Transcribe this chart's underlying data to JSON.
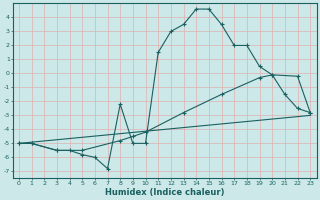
{
  "xlabel": "Humidex (Indice chaleur)",
  "bg_color": "#cce8e8",
  "grid_color": "#ddb0b0",
  "line_color": "#1a6060",
  "xlim": [
    -0.5,
    23.5
  ],
  "ylim": [
    -7.5,
    5.0
  ],
  "xticks": [
    0,
    1,
    2,
    3,
    4,
    5,
    6,
    7,
    8,
    9,
    10,
    11,
    12,
    13,
    14,
    15,
    16,
    17,
    18,
    19,
    20,
    21,
    22,
    23
  ],
  "yticks": [
    -7,
    -6,
    -5,
    -4,
    -3,
    -2,
    -1,
    0,
    1,
    2,
    3,
    4
  ],
  "series": [
    {
      "x": [
        0,
        1,
        3,
        4,
        5,
        6,
        7,
        8,
        9,
        10,
        11,
        12,
        13,
        14,
        15,
        16,
        17,
        18,
        19,
        20,
        21,
        22,
        23
      ],
      "y": [
        -5.0,
        -5.0,
        -5.5,
        -5.5,
        -5.8,
        -6.0,
        -6.8,
        -2.2,
        -5.0,
        -5.0,
        1.5,
        3.0,
        3.5,
        4.6,
        4.6,
        3.5,
        2.0,
        2.0,
        0.5,
        -0.1,
        -1.5,
        -2.5,
        -2.8
      ]
    },
    {
      "x": [
        0,
        1,
        3,
        5,
        8,
        9,
        10,
        13,
        16,
        19,
        20,
        22,
        23
      ],
      "y": [
        -5.0,
        -5.0,
        -5.5,
        -5.5,
        -4.8,
        -4.5,
        -4.2,
        -2.8,
        -1.5,
        -0.3,
        -0.1,
        -0.2,
        -2.8
      ]
    },
    {
      "x": [
        0,
        23
      ],
      "y": [
        -5.0,
        -3.0
      ]
    }
  ]
}
